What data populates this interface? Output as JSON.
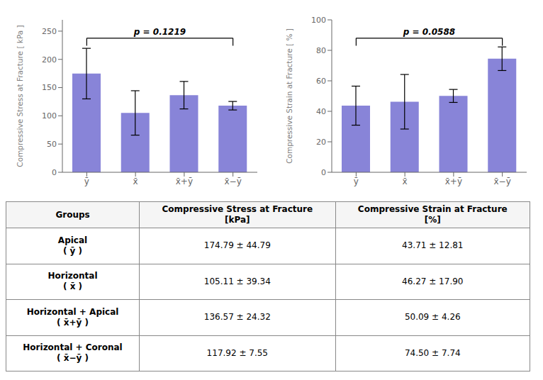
{
  "chart_data": [
    {
      "type": "bar",
      "y_label": "Compressive Stress at Fracture [ kPa ]",
      "categories": [
        "ȳ",
        "x̄",
        "x̄+ȳ",
        "x̄−ȳ"
      ],
      "values": [
        174.79,
        105.11,
        136.57,
        117.92
      ],
      "errors": [
        44.79,
        39.34,
        24.32,
        7.55
      ],
      "ylim": [
        0,
        270
      ],
      "yticks": [
        0,
        50,
        100,
        150,
        200,
        250
      ],
      "grid": false,
      "color": "#8884d8",
      "annotations": [
        {
          "text": "p = 0.1219"
        }
      ]
    },
    {
      "type": "bar",
      "y_label": "Compressive Strain at Fracture [ % ]",
      "categories": [
        "ȳ",
        "x̄",
        "x̄+ȳ",
        "x̄−ȳ"
      ],
      "values": [
        43.71,
        46.27,
        50.09,
        74.5
      ],
      "errors": [
        12.81,
        17.9,
        4.26,
        7.74
      ],
      "ylim": [
        0,
        100
      ],
      "yticks": [
        0,
        20,
        40,
        60,
        80,
        100
      ],
      "grid": false,
      "color": "#8884d8",
      "annotations": [
        {
          "text": "p = 0.0588"
        }
      ]
    },
    {
      "type": "table",
      "columns": [
        "Groups",
        "Compressive Stress at Fracture\n[kPa]",
        "Compressive Strain at Fracture\n[%]"
      ],
      "rows": [
        [
          "Apical\n( ȳ )",
          "174.79 ± 44.79",
          "43.71 ± 12.81"
        ],
        [
          "Horizontal\n( x̄ )",
          "105.11 ± 39.34",
          "46.27 ± 17.90"
        ],
        [
          "Horizontal + Apical\n( x̄+ȳ )",
          "136.57 ± 24.32",
          "50.09 ± 4.26"
        ],
        [
          "Horizontal + Coronal\n( x̄−ȳ )",
          "117.92 ± 7.55",
          "74.50 ± 7.74"
        ]
      ]
    }
  ]
}
